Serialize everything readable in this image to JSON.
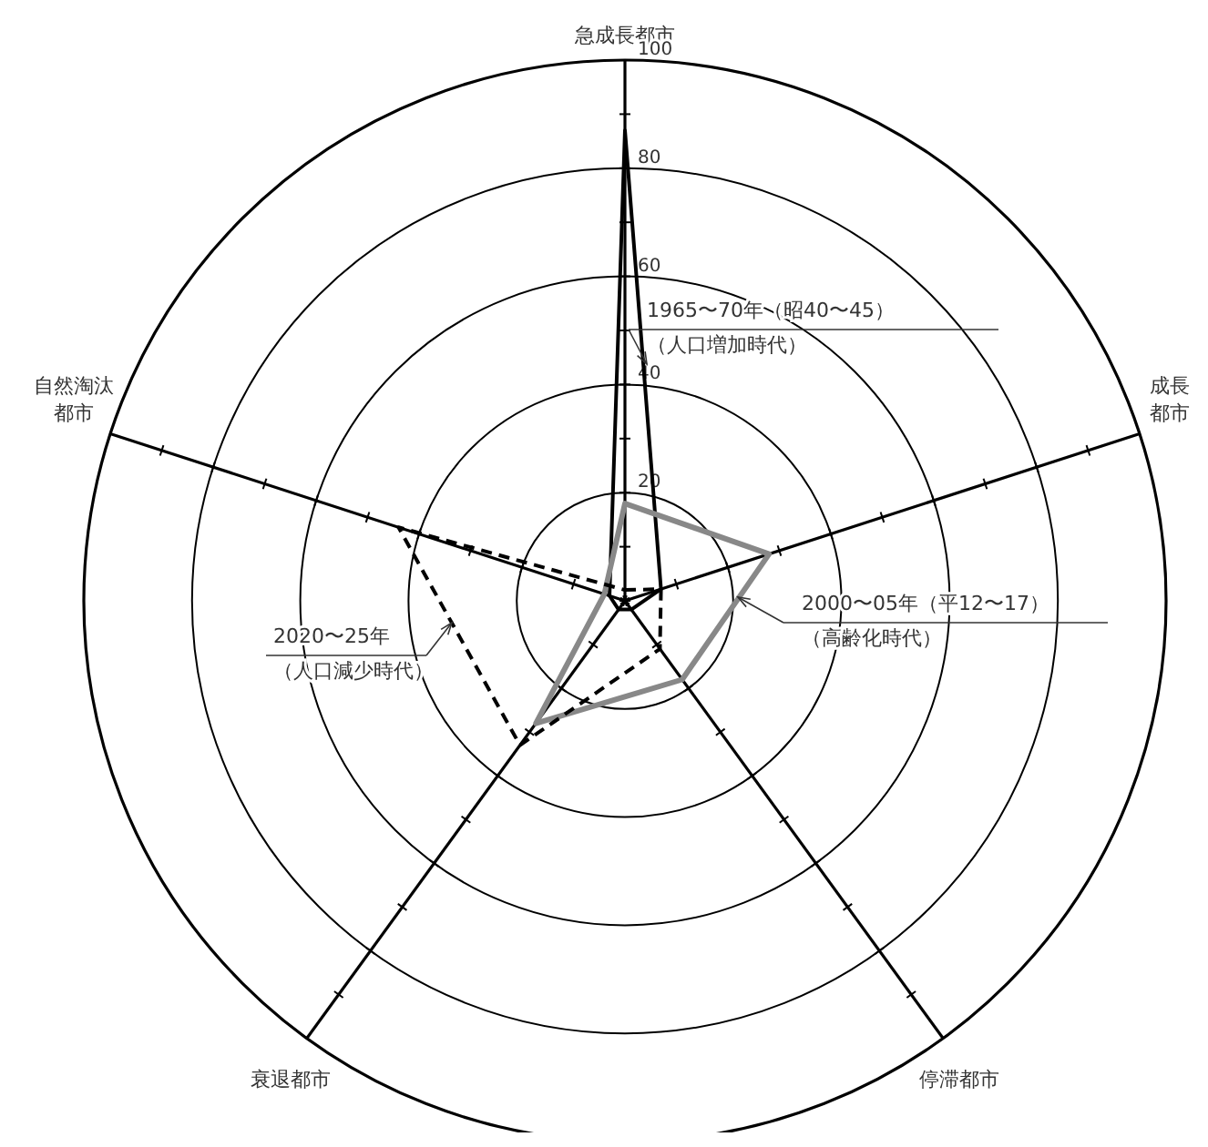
{
  "chart_data": {
    "type": "radar",
    "categories": [
      "急成長都市",
      "成長都市",
      "停滞都市",
      "衰退都市",
      "自然淘汰都市"
    ],
    "ylim": [
      0,
      100
    ],
    "yticks": [
      20,
      40,
      60,
      80,
      100
    ],
    "grid": true,
    "series": [
      {
        "name": "1965〜70年（昭40〜45）（人口増加時代）",
        "color": "#000000",
        "line_style": "solid",
        "values": [
          87,
          7,
          2,
          2,
          3
        ]
      },
      {
        "name": "2000〜05年（平12〜17）（高齢化時代）",
        "color": "#888888",
        "line_style": "solid",
        "values": [
          18,
          28,
          18,
          28,
          4
        ]
      },
      {
        "name": "2020〜25年（人口減少時代）",
        "color": "#000000",
        "line_style": "dashed",
        "values": [
          2,
          7,
          11,
          33,
          44
        ]
      }
    ]
  }
}
